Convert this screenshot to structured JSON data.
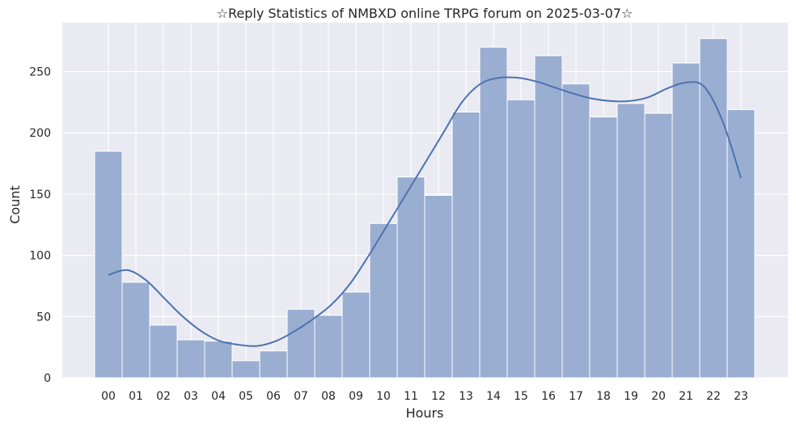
{
  "chart_data": {
    "type": "bar",
    "title": "☆Reply Statistics of NMBXD online TRPG forum on 2025-03-07☆",
    "xlabel": "Hours",
    "ylabel": "Count",
    "categories": [
      "00",
      "01",
      "02",
      "03",
      "04",
      "05",
      "06",
      "07",
      "08",
      "09",
      "10",
      "11",
      "12",
      "13",
      "14",
      "15",
      "16",
      "17",
      "18",
      "19",
      "20",
      "21",
      "22",
      "23"
    ],
    "values": [
      185,
      78,
      43,
      31,
      30,
      14,
      22,
      56,
      51,
      70,
      126,
      164,
      149,
      217,
      270,
      227,
      263,
      240,
      213,
      224,
      216,
      257,
      277,
      219
    ],
    "kde": [
      84,
      88,
      80,
      65,
      50,
      38,
      30,
      27,
      26,
      30,
      38,
      48,
      60,
      77,
      100,
      125,
      150,
      175,
      200,
      225,
      240,
      245,
      245,
      242,
      237,
      232,
      228,
      226,
      226,
      229,
      236,
      241,
      238,
      210,
      163
    ],
    "yticks": [
      0,
      50,
      100,
      150,
      200,
      250
    ],
    "ylim": [
      0,
      290
    ],
    "grid": true,
    "colors": {
      "bar_fill": "#9aaed1",
      "bar_stroke": "#ffffff",
      "kde_line": "#4c72b0",
      "plot_background": "#eaeaf2",
      "grid_line": "#ffffff"
    }
  }
}
